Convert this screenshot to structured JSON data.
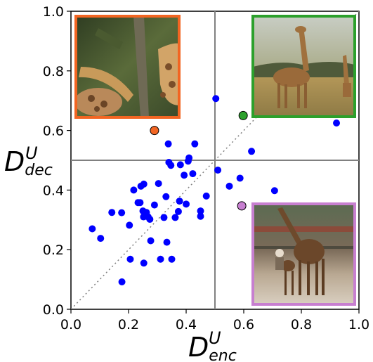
{
  "chart_data": {
    "type": "scatter",
    "xlabel": {
      "main": "D",
      "sup": "U",
      "sub": "enc"
    },
    "ylabel": {
      "main": "D",
      "sup": "U",
      "sub": "dec"
    },
    "xlim": [
      0.0,
      1.0
    ],
    "ylim": [
      0.0,
      1.0
    ],
    "xticks": [
      "0.0",
      "0.2",
      "0.4",
      "0.6",
      "0.8",
      "1.0"
    ],
    "yticks": [
      "0.0",
      "0.2",
      "0.4",
      "0.6",
      "0.8",
      "1.0"
    ],
    "reference_lines": {
      "x": 0.5,
      "y": 0.5,
      "diagonal": "y=x dotted"
    },
    "points": [
      {
        "x": 0.074,
        "y": 0.27
      },
      {
        "x": 0.103,
        "y": 0.238
      },
      {
        "x": 0.142,
        "y": 0.325
      },
      {
        "x": 0.176,
        "y": 0.324
      },
      {
        "x": 0.177,
        "y": 0.092
      },
      {
        "x": 0.203,
        "y": 0.282
      },
      {
        "x": 0.206,
        "y": 0.168
      },
      {
        "x": 0.218,
        "y": 0.4
      },
      {
        "x": 0.233,
        "y": 0.358
      },
      {
        "x": 0.24,
        "y": 0.358
      },
      {
        "x": 0.243,
        "y": 0.413
      },
      {
        "x": 0.25,
        "y": 0.33
      },
      {
        "x": 0.252,
        "y": 0.31
      },
      {
        "x": 0.253,
        "y": 0.42
      },
      {
        "x": 0.253,
        "y": 0.155
      },
      {
        "x": 0.262,
        "y": 0.325
      },
      {
        "x": 0.268,
        "y": 0.31
      },
      {
        "x": 0.274,
        "y": 0.302
      },
      {
        "x": 0.277,
        "y": 0.23
      },
      {
        "x": 0.29,
        "y": 0.35
      },
      {
        "x": 0.304,
        "y": 0.422
      },
      {
        "x": 0.311,
        "y": 0.168
      },
      {
        "x": 0.323,
        "y": 0.308
      },
      {
        "x": 0.33,
        "y": 0.378
      },
      {
        "x": 0.333,
        "y": 0.225
      },
      {
        "x": 0.338,
        "y": 0.555
      },
      {
        "x": 0.34,
        "y": 0.493
      },
      {
        "x": 0.347,
        "y": 0.483
      },
      {
        "x": 0.35,
        "y": 0.168
      },
      {
        "x": 0.362,
        "y": 0.308
      },
      {
        "x": 0.373,
        "y": 0.328
      },
      {
        "x": 0.377,
        "y": 0.363
      },
      {
        "x": 0.38,
        "y": 0.485
      },
      {
        "x": 0.393,
        "y": 0.45
      },
      {
        "x": 0.4,
        "y": 0.353
      },
      {
        "x": 0.407,
        "y": 0.497
      },
      {
        "x": 0.41,
        "y": 0.508
      },
      {
        "x": 0.423,
        "y": 0.455
      },
      {
        "x": 0.43,
        "y": 0.555
      },
      {
        "x": 0.45,
        "y": 0.33
      },
      {
        "x": 0.45,
        "y": 0.312
      },
      {
        "x": 0.47,
        "y": 0.38
      },
      {
        "x": 0.503,
        "y": 0.707
      },
      {
        "x": 0.51,
        "y": 0.467
      },
      {
        "x": 0.55,
        "y": 0.413
      },
      {
        "x": 0.587,
        "y": 0.44
      },
      {
        "x": 0.627,
        "y": 0.53
      },
      {
        "x": 0.707,
        "y": 0.398
      },
      {
        "x": 0.922,
        "y": 0.625
      }
    ],
    "highlighted_points": [
      {
        "x": 0.29,
        "y": 0.6,
        "color": "#f26522"
      },
      {
        "x": 0.598,
        "y": 0.65,
        "color": "#2ca02c"
      },
      {
        "x": 0.593,
        "y": 0.347,
        "color": "#c77fd0"
      }
    ],
    "point_color": "#0000ff",
    "grid": false,
    "thumbnails": [
      {
        "name": "giraffe-closeup-thumbnail",
        "border_color": "#f26522",
        "quadrant": "top-left"
      },
      {
        "name": "giraffes-savanna-thumbnail",
        "border_color": "#2ca02c",
        "quadrant": "top-right"
      },
      {
        "name": "giraffe-zoo-thumbnail",
        "border_color": "#c77fd0",
        "quadrant": "bottom-right"
      }
    ]
  }
}
